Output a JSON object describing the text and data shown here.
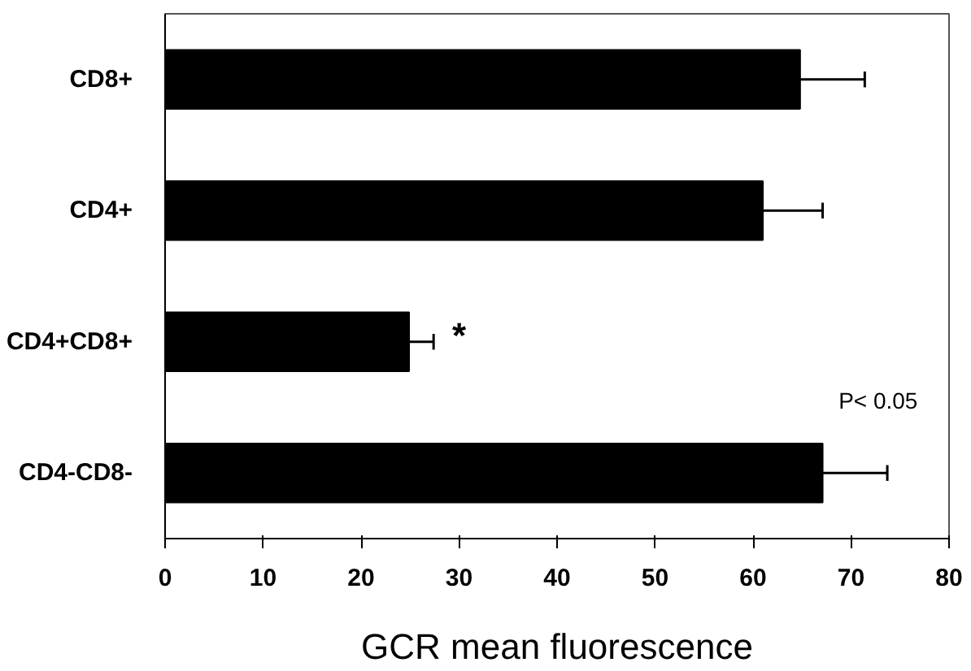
{
  "chart_data": {
    "type": "bar",
    "orientation": "horizontal",
    "xlabel": "GCR mean fluorescence",
    "categories": [
      "CD8+",
      "CD4+",
      "CD4+CD8+",
      "CD4-CD8-"
    ],
    "values": [
      64.8,
      61.0,
      24.9,
      67.1
    ],
    "color": "#000000",
    "errors": [
      [
        64.8,
        71.4
      ],
      [
        61.0,
        67.1
      ],
      [
        24.9,
        27.4
      ],
      [
        67.1,
        73.7
      ]
    ],
    "xlim": [
      0,
      80
    ],
    "xticks": [
      0,
      10,
      20,
      30,
      40,
      50,
      60,
      70,
      80
    ],
    "grid": false,
    "annotations": [
      "*",
      "P< 0.05"
    ]
  }
}
